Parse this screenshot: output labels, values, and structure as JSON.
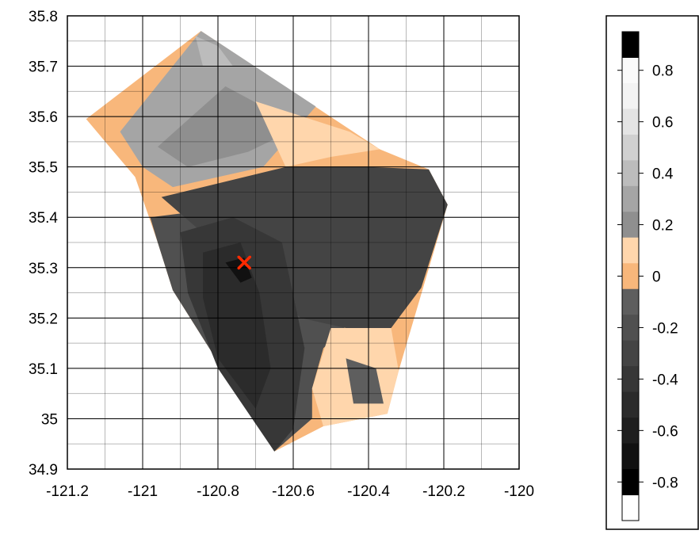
{
  "chart_data": {
    "type": "heatmap",
    "title": "",
    "xlabel": "",
    "ylabel": "",
    "xlim": [
      -121.2,
      -120.0
    ],
    "ylim": [
      34.9,
      35.8
    ],
    "x_ticks": [
      -121.2,
      -121.0,
      -120.8,
      -120.6,
      -120.4,
      -120.2,
      -120.0
    ],
    "x_tick_labels": [
      "-121.2",
      "-121",
      "-120.8",
      "-120.6",
      "-120.4",
      "-120.2",
      "-120"
    ],
    "y_ticks": [
      34.9,
      35.0,
      35.1,
      35.2,
      35.3,
      35.4,
      35.5,
      35.6,
      35.7,
      35.8
    ],
    "y_tick_labels": [
      "34.9",
      "35",
      "35.1",
      "35.2",
      "35.3",
      "35.4",
      "35.5",
      "35.6",
      "35.7",
      "35.8"
    ],
    "grid": true,
    "marker": {
      "symbol": "X",
      "x": -120.73,
      "y": 35.31,
      "color": "#ff2a00"
    },
    "data_hull": [
      [
        -121.15,
        35.595
      ],
      [
        -120.845,
        35.77
      ],
      [
        -120.37,
        35.535
      ],
      [
        -120.24,
        35.495
      ],
      [
        -120.19,
        35.425
      ],
      [
        -120.32,
        35.095
      ],
      [
        -120.35,
        35.01
      ],
      [
        -120.52,
        34.985
      ],
      [
        -120.65,
        34.935
      ],
      [
        -120.92,
        35.255
      ],
      [
        -120.96,
        35.35
      ],
      [
        -121.02,
        35.48
      ]
    ],
    "regions": [
      {
        "value": -0.22,
        "points": [
          [
            -120.98,
            35.4
          ],
          [
            -120.55,
            35.44
          ],
          [
            -120.38,
            35.46
          ],
          [
            -120.28,
            35.38
          ],
          [
            -120.41,
            35.22
          ],
          [
            -120.52,
            35.14
          ],
          [
            -120.55,
            35.06
          ],
          [
            -120.55,
            35.0
          ],
          [
            -120.65,
            34.935
          ],
          [
            -120.92,
            35.255
          ],
          [
            -120.96,
            35.35
          ]
        ]
      },
      {
        "value": -0.32,
        "points": [
          [
            -120.95,
            35.44
          ],
          [
            -120.62,
            35.5
          ],
          [
            -120.4,
            35.5
          ],
          [
            -120.24,
            35.495
          ],
          [
            -120.19,
            35.425
          ],
          [
            -120.26,
            35.26
          ],
          [
            -120.34,
            35.18
          ],
          [
            -120.46,
            35.18
          ],
          [
            -120.58,
            35.2
          ]
        ]
      },
      {
        "value": -0.45,
        "points": [
          [
            -120.9,
            35.37
          ],
          [
            -120.76,
            35.4
          ],
          [
            -120.63,
            35.35
          ],
          [
            -120.57,
            35.14
          ],
          [
            -120.6,
            34.98
          ],
          [
            -120.65,
            34.935
          ],
          [
            -120.8,
            35.1
          ],
          [
            -120.88,
            35.25
          ]
        ]
      },
      {
        "value": -0.55,
        "points": [
          [
            -120.84,
            35.33
          ],
          [
            -120.74,
            35.35
          ],
          [
            -120.69,
            35.25
          ],
          [
            -120.66,
            35.1
          ],
          [
            -120.7,
            35.02
          ],
          [
            -120.8,
            35.12
          ],
          [
            -120.84,
            35.24
          ]
        ]
      },
      {
        "value": -0.68,
        "points": [
          [
            -120.78,
            35.31
          ],
          [
            -120.73,
            35.32
          ],
          [
            -120.71,
            35.28
          ],
          [
            -120.74,
            35.27
          ]
        ]
      },
      {
        "value": 0.28,
        "points": [
          [
            -121.06,
            35.57
          ],
          [
            -120.845,
            35.77
          ],
          [
            -120.54,
            35.62
          ],
          [
            -120.68,
            35.5
          ],
          [
            -120.92,
            35.46
          ],
          [
            -121.0,
            35.5
          ]
        ]
      },
      {
        "value": 0.15,
        "points": [
          [
            -120.96,
            35.54
          ],
          [
            -120.78,
            35.66
          ],
          [
            -120.58,
            35.58
          ],
          [
            -120.72,
            35.53
          ],
          [
            -120.88,
            35.5
          ]
        ]
      },
      {
        "value": 0.42,
        "points": [
          [
            -120.86,
            35.76
          ],
          [
            -120.8,
            35.74
          ],
          [
            -120.76,
            35.7
          ],
          [
            -120.84,
            35.7
          ]
        ]
      },
      {
        "value": 0.05,
        "points": [
          [
            -120.7,
            35.63
          ],
          [
            -120.45,
            35.57
          ],
          [
            -120.37,
            35.535
          ],
          [
            -120.5,
            35.52
          ],
          [
            -120.62,
            35.5
          ]
        ]
      },
      {
        "value": 0.05,
        "points": [
          [
            -120.5,
            35.18
          ],
          [
            -120.34,
            35.18
          ],
          [
            -120.32,
            35.095
          ],
          [
            -120.35,
            35.01
          ],
          [
            -120.52,
            34.985
          ],
          [
            -120.55,
            35.06
          ]
        ]
      },
      {
        "value": -0.12,
        "points": [
          [
            -120.46,
            35.12
          ],
          [
            -120.38,
            35.1
          ],
          [
            -120.36,
            35.03
          ],
          [
            -120.44,
            35.03
          ]
        ]
      }
    ],
    "colorbar": {
      "levels": [
        -0.85,
        -0.75,
        -0.65,
        -0.55,
        -0.45,
        -0.35,
        -0.25,
        -0.15,
        -0.05,
        0.05,
        0.15,
        0.25,
        0.35,
        0.45,
        0.55,
        0.65,
        0.75,
        0.85
      ],
      "colors": [
        "#000000",
        "#111111",
        "#1e1e1e",
        "#2b2b2b",
        "#373737",
        "#444444",
        "#505050",
        "#5e5e5e",
        "#f8b77b",
        "#ffd6ac",
        "#8f8f8f",
        "#a5a5a5",
        "#bcbcbc",
        "#d0d0d0",
        "#e4e4e4",
        "#f3f3f3",
        "#fafafa"
      ],
      "tick_values": [
        -0.8,
        -0.6,
        -0.4,
        -0.2,
        0,
        0.2,
        0.4,
        0.6,
        0.8
      ],
      "tick_labels": [
        "-0.8",
        "-0.6",
        "-0.4",
        "-0.2",
        "0",
        "0.2",
        "0.4",
        "0.6",
        "0.8"
      ],
      "over_color": "#000000",
      "under_color": "#ffffff"
    }
  }
}
